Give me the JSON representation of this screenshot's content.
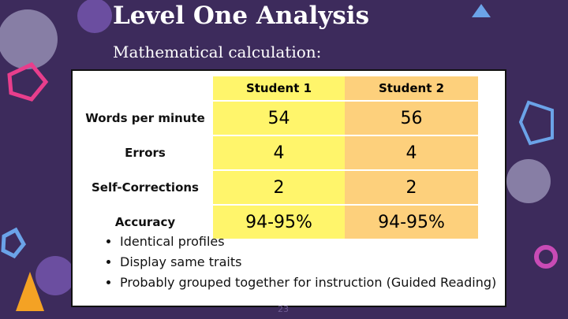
{
  "header": {
    "title": "Level One Analysis",
    "subtitle": "Mathematical calculation:"
  },
  "table": {
    "columns": [
      "Student 1",
      "Student 2"
    ],
    "rows": [
      [
        "Words per minute",
        54,
        56
      ],
      [
        "Errors",
        4,
        4
      ],
      [
        "Self-Corrections",
        2,
        2
      ],
      [
        "Accuracy",
        "94-95%",
        "94-95%"
      ]
    ]
  },
  "bullets": [
    "Identical profiles",
    "Display same traits",
    "Probably grouped together for instruction (Guided Reading)"
  ],
  "page_number": "23"
}
